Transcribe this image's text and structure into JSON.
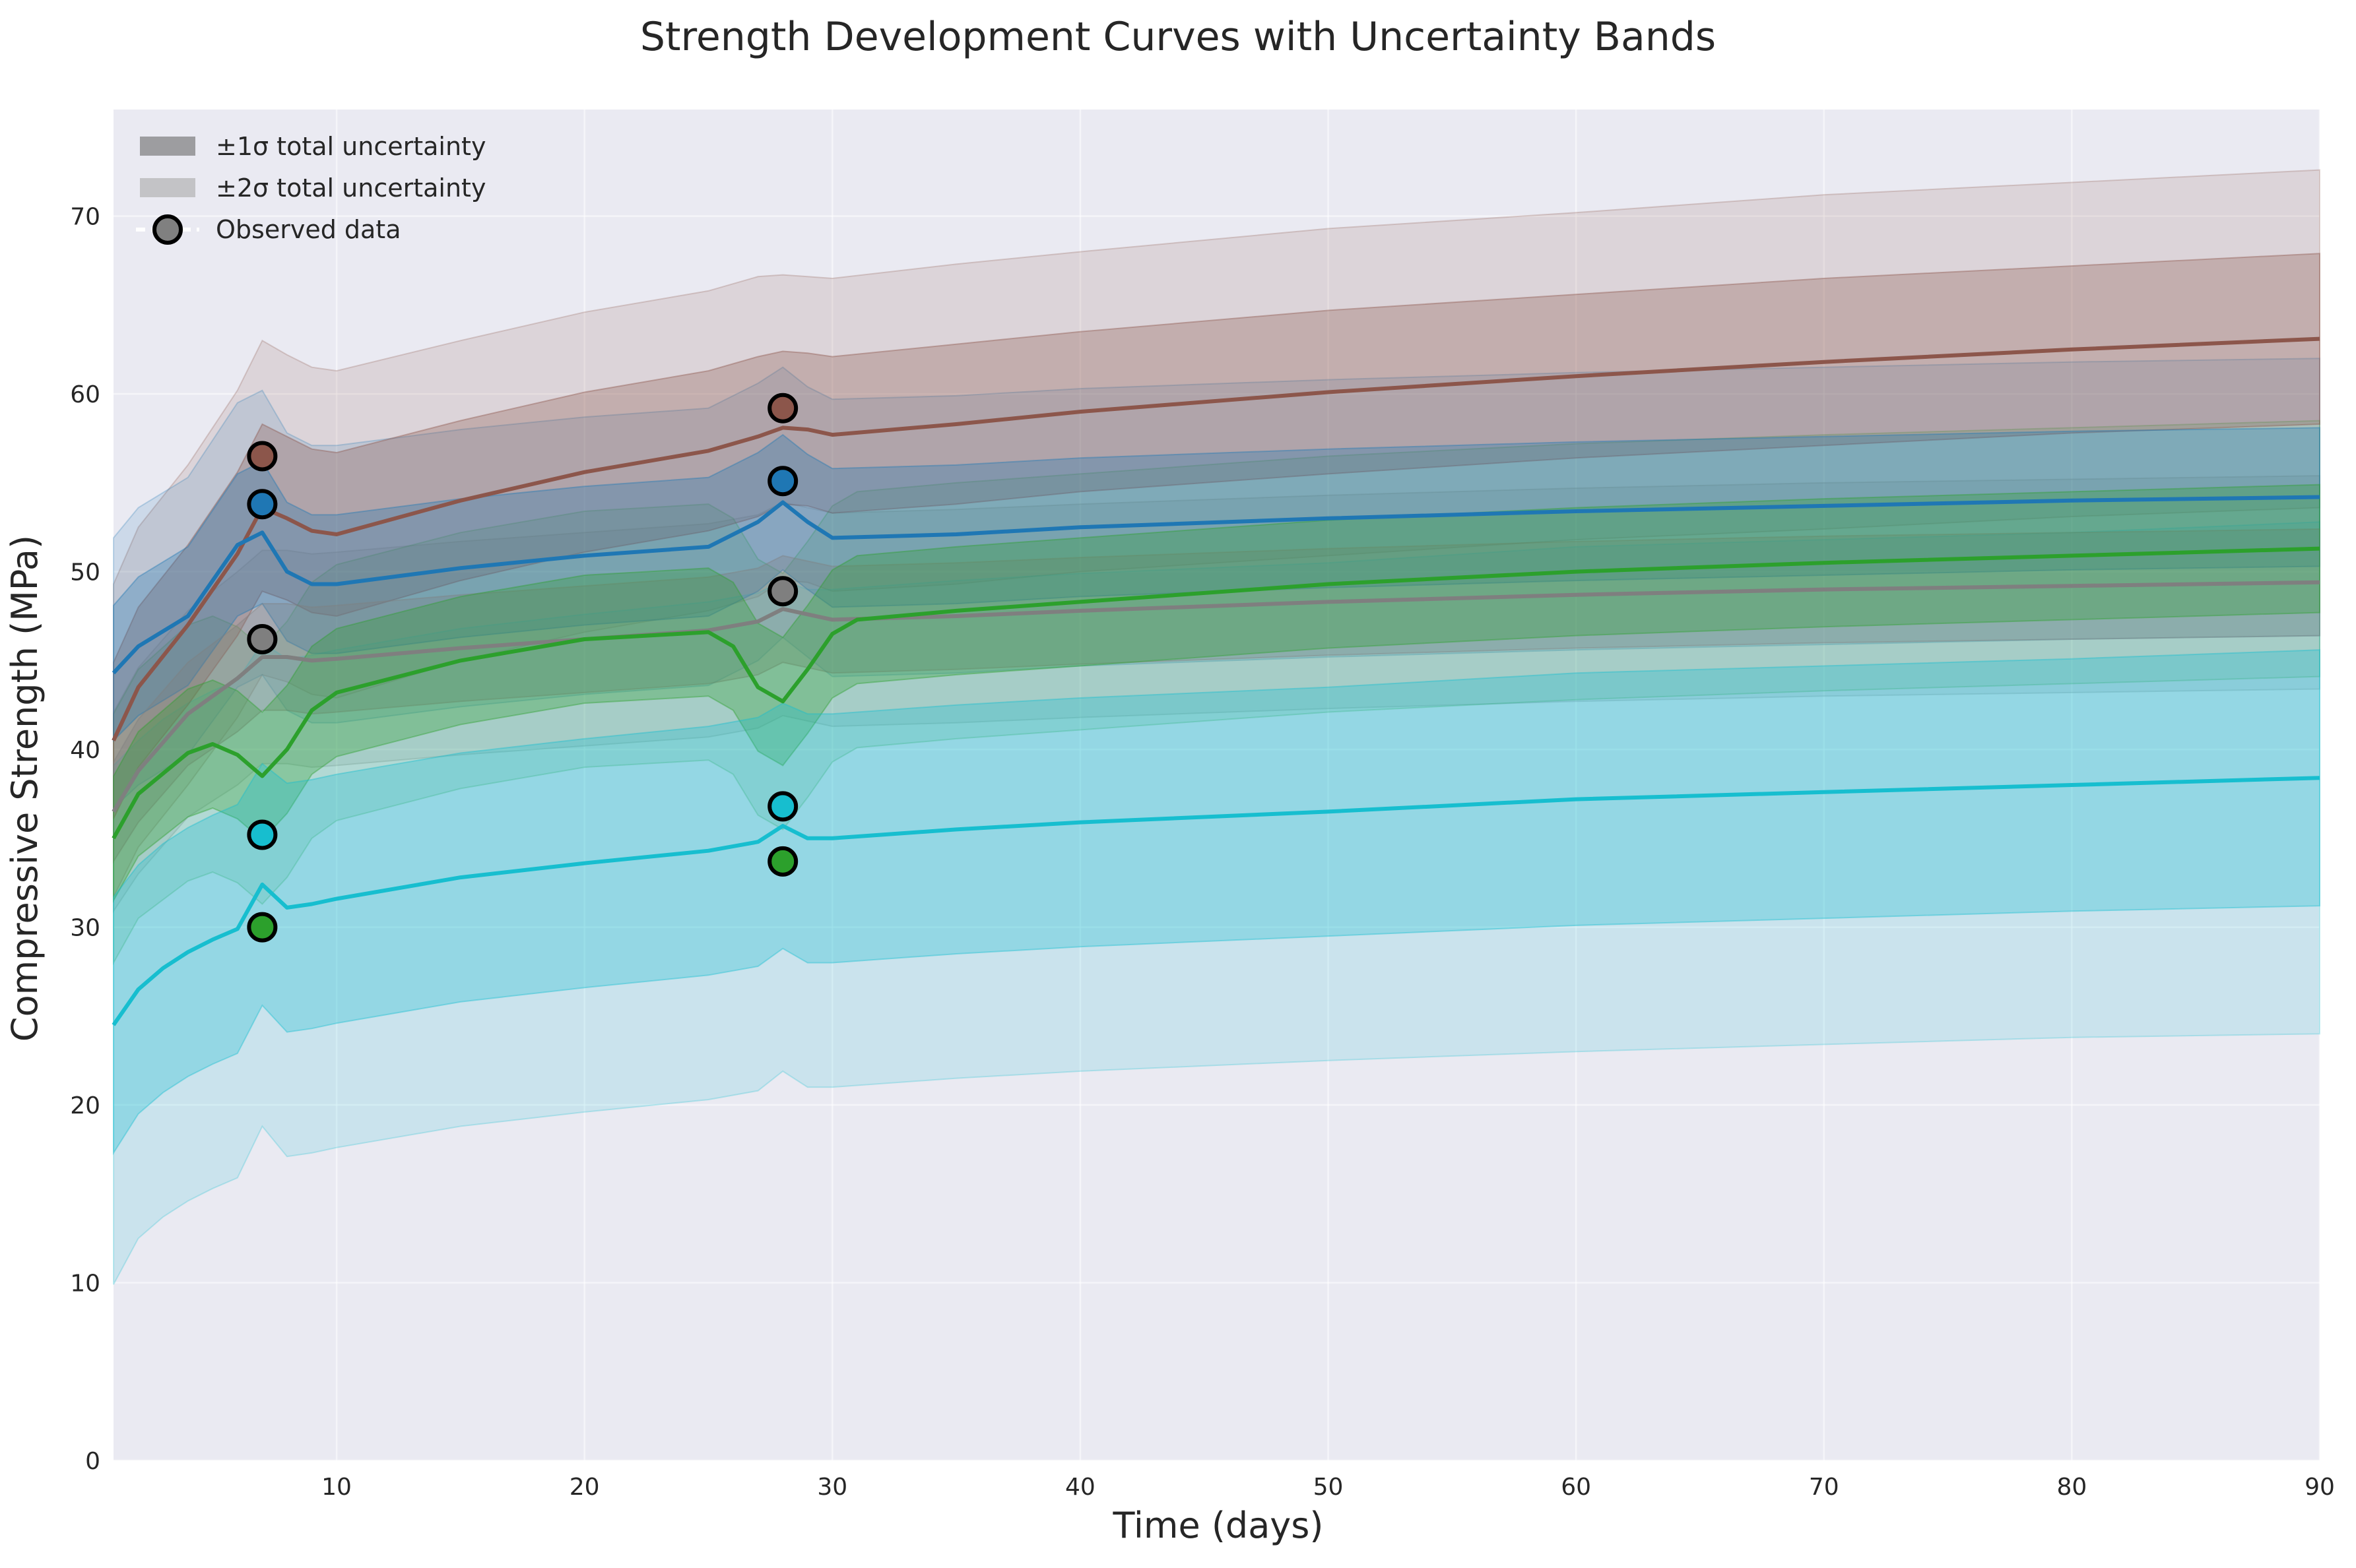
{
  "chart_data": {
    "type": "line",
    "title": "Strength Development Curves with Uncertainty Bands",
    "xlabel": "Time (days)",
    "ylabel": "Compressive Strength (MPa)",
    "xlim": [
      1,
      90
    ],
    "ylim": [
      0,
      76
    ],
    "xticks": [
      10,
      20,
      30,
      40,
      50,
      60,
      70,
      80,
      90
    ],
    "yticks": [
      0,
      10,
      20,
      30,
      40,
      50,
      60,
      70
    ],
    "grid": true,
    "legend_position": "top-left",
    "legend": [
      {
        "label": "±1σ total uncertainty",
        "kind": "band1"
      },
      {
        "label": "±2σ total uncertainty",
        "kind": "band2"
      },
      {
        "label": "Observed data",
        "kind": "marker"
      }
    ],
    "colors": {
      "plot_background": "#eaeaf2",
      "grid": "#ffffff",
      "brown": "#8c564b",
      "blue": "#1f77b4",
      "gray": "#7f7f7f",
      "green": "#2ca02c",
      "cyan": "#17becf",
      "legend_band1": "#9d9da0",
      "legend_band2": "#c3c3c6",
      "legend_marker": "#808080"
    },
    "series": [
      {
        "color_key": "brown",
        "x": [
          1,
          2,
          4,
          6,
          7,
          8,
          9,
          10,
          15,
          20,
          25,
          27,
          28,
          29,
          30,
          35,
          40,
          50,
          60,
          70,
          80,
          90
        ],
        "mean": [
          40.5,
          43.5,
          47.0,
          51.0,
          53.6,
          53.0,
          52.3,
          52.1,
          54.0,
          55.6,
          56.8,
          57.6,
          58.1,
          58.0,
          57.7,
          58.3,
          59.0,
          60.1,
          61.0,
          61.8,
          62.5,
          63.1
        ],
        "sigma1": [
          4.4,
          4.5,
          4.5,
          4.6,
          4.7,
          4.6,
          4.6,
          4.6,
          4.5,
          4.5,
          4.5,
          4.5,
          4.3,
          4.3,
          4.4,
          4.5,
          4.5,
          4.6,
          4.6,
          4.7,
          4.7,
          4.8
        ],
        "sigma2": [
          8.8,
          9.0,
          9.0,
          9.2,
          9.4,
          9.2,
          9.2,
          9.2,
          9.0,
          9.0,
          9.0,
          9.0,
          8.6,
          8.6,
          8.8,
          9.0,
          9.0,
          9.2,
          9.2,
          9.4,
          9.4,
          9.5
        ],
        "observed_x": [
          7,
          28
        ],
        "observed_y": [
          56.5,
          59.2
        ]
      },
      {
        "color_key": "blue",
        "x": [
          1,
          2,
          4,
          6,
          7,
          8,
          9,
          10,
          15,
          20,
          25,
          27,
          28,
          29,
          30,
          35,
          40,
          50,
          60,
          70,
          80,
          90
        ],
        "mean": [
          44.3,
          45.8,
          47.5,
          51.5,
          52.2,
          50.0,
          49.3,
          49.3,
          50.2,
          50.9,
          51.4,
          52.8,
          53.9,
          52.8,
          51.9,
          52.1,
          52.5,
          53.0,
          53.4,
          53.7,
          54.0,
          54.2
        ],
        "sigma1": [
          3.8,
          3.9,
          3.9,
          4.0,
          4.0,
          3.9,
          3.9,
          3.9,
          3.9,
          3.9,
          3.9,
          3.9,
          3.8,
          3.8,
          3.9,
          3.9,
          3.9,
          3.9,
          3.9,
          3.9,
          3.9,
          3.9
        ],
        "sigma2": [
          7.6,
          7.8,
          7.8,
          8.0,
          8.0,
          7.8,
          7.8,
          7.8,
          7.8,
          7.8,
          7.8,
          7.8,
          7.6,
          7.6,
          7.8,
          7.8,
          7.8,
          7.8,
          7.8,
          7.8,
          7.8,
          7.8
        ],
        "observed_x": [
          7,
          28
        ],
        "observed_y": [
          53.8,
          55.1
        ]
      },
      {
        "color_key": "gray",
        "x": [
          1,
          2,
          4,
          6,
          7,
          8,
          9,
          10,
          15,
          20,
          25,
          27,
          28,
          29,
          30,
          35,
          40,
          50,
          60,
          70,
          80,
          90
        ],
        "mean": [
          36.5,
          38.8,
          42.0,
          44.0,
          45.2,
          45.2,
          45.0,
          45.1,
          45.7,
          46.2,
          46.7,
          47.2,
          47.9,
          47.6,
          47.3,
          47.5,
          47.8,
          48.3,
          48.7,
          49.0,
          49.2,
          49.4
        ],
        "sigma1": [
          2.8,
          2.9,
          2.9,
          3.0,
          3.0,
          3.0,
          3.0,
          3.0,
          3.0,
          3.0,
          3.0,
          3.0,
          3.0,
          3.0,
          3.0,
          3.0,
          3.0,
          3.0,
          3.0,
          3.0,
          3.0,
          3.0
        ],
        "sigma2": [
          5.6,
          5.8,
          5.8,
          6.0,
          6.0,
          6.0,
          6.0,
          6.0,
          6.0,
          6.0,
          6.0,
          6.0,
          6.0,
          6.0,
          6.0,
          6.0,
          6.0,
          6.0,
          6.0,
          6.0,
          6.0,
          6.0
        ],
        "observed_x": [
          7,
          28
        ],
        "observed_y": [
          46.2,
          48.9
        ]
      },
      {
        "color_key": "green",
        "x": [
          1,
          2,
          4,
          5,
          6,
          7,
          8,
          9,
          10,
          15,
          20,
          25,
          26,
          27,
          28,
          29,
          30,
          31,
          35,
          40,
          50,
          60,
          70,
          80,
          90
        ],
        "mean": [
          35.0,
          37.5,
          39.8,
          40.3,
          39.7,
          38.5,
          40.0,
          42.2,
          43.2,
          45.0,
          46.2,
          46.6,
          45.8,
          43.5,
          42.7,
          44.5,
          46.5,
          47.3,
          47.8,
          48.3,
          49.3,
          50.0,
          50.5,
          50.9,
          51.3
        ],
        "sigma1": [
          3.5,
          3.5,
          3.6,
          3.6,
          3.6,
          3.6,
          3.6,
          3.6,
          3.6,
          3.6,
          3.6,
          3.6,
          3.6,
          3.6,
          3.6,
          3.6,
          3.6,
          3.6,
          3.6,
          3.6,
          3.6,
          3.6,
          3.6,
          3.6,
          3.6
        ],
        "sigma2": [
          7.0,
          7.0,
          7.2,
          7.2,
          7.2,
          7.2,
          7.2,
          7.2,
          7.2,
          7.2,
          7.2,
          7.2,
          7.2,
          7.2,
          7.2,
          7.2,
          7.2,
          7.2,
          7.2,
          7.2,
          7.2,
          7.2,
          7.2,
          7.2,
          7.2
        ],
        "observed_x": [
          7,
          28
        ],
        "observed_y": [
          30.0,
          33.7
        ]
      },
      {
        "color_key": "cyan",
        "x": [
          1,
          2,
          3,
          4,
          5,
          6,
          7,
          8,
          9,
          10,
          15,
          20,
          25,
          27,
          28,
          29,
          30,
          35,
          40,
          50,
          60,
          70,
          80,
          90
        ],
        "mean": [
          24.5,
          26.5,
          27.7,
          28.6,
          29.3,
          29.9,
          32.4,
          31.1,
          31.3,
          31.6,
          32.8,
          33.6,
          34.3,
          34.8,
          35.7,
          35.0,
          35.0,
          35.5,
          35.9,
          36.5,
          37.2,
          37.6,
          38.0,
          38.4
        ],
        "sigma1": [
          7.2,
          7.0,
          7.0,
          7.0,
          7.0,
          7.0,
          6.8,
          7.0,
          7.0,
          7.0,
          7.0,
          7.0,
          7.0,
          7.0,
          6.9,
          7.0,
          7.0,
          7.0,
          7.0,
          7.0,
          7.1,
          7.1,
          7.1,
          7.2
        ],
        "sigma2": [
          14.6,
          14.0,
          14.0,
          14.0,
          14.0,
          14.0,
          13.6,
          14.0,
          14.0,
          14.0,
          14.0,
          14.0,
          14.0,
          14.0,
          13.8,
          14.0,
          14.0,
          14.0,
          14.0,
          14.0,
          14.2,
          14.2,
          14.2,
          14.4
        ],
        "observed_x": [
          7,
          28
        ],
        "observed_y": [
          35.2,
          36.8
        ]
      }
    ]
  }
}
